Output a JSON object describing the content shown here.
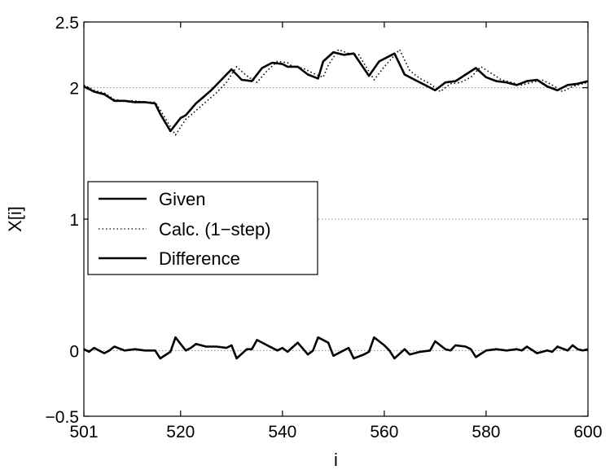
{
  "chart_data": {
    "type": "line",
    "xlabel": "i",
    "ylabel": "X[i]",
    "xlim": [
      501,
      600
    ],
    "ylim": [
      -0.5,
      2.5
    ],
    "x_ticks": [
      501,
      520,
      540,
      560,
      580,
      600
    ],
    "x_tick_labels": [
      "501",
      "520",
      "540",
      "560",
      "580",
      "600"
    ],
    "y_ticks": [
      -0.5,
      0,
      1,
      2,
      2.5
    ],
    "y_tick_labels": [
      "−0.5",
      "0",
      "1",
      "2",
      "2.5"
    ],
    "reference_lines": [
      0,
      1,
      2
    ],
    "legend": {
      "position": "middle-left",
      "entries": [
        {
          "label": "Given",
          "style": "solid"
        },
        {
          "label": "Calc. (1−step)",
          "style": "dotted"
        },
        {
          "label": "Difference",
          "style": "solid"
        }
      ]
    },
    "series": [
      {
        "name": "Given",
        "style": "solid",
        "color": "#000000",
        "points": [
          [
            501,
            2.01
          ],
          [
            503,
            1.97
          ],
          [
            505,
            1.95
          ],
          [
            507,
            1.9
          ],
          [
            509,
            1.9
          ],
          [
            511,
            1.89
          ],
          [
            513,
            1.89
          ],
          [
            515,
            1.88
          ],
          [
            516,
            1.8
          ],
          [
            518,
            1.67
          ],
          [
            520,
            1.77
          ],
          [
            521,
            1.79
          ],
          [
            523,
            1.88
          ],
          [
            526,
            1.98
          ],
          [
            528,
            2.06
          ],
          [
            530,
            2.14
          ],
          [
            532,
            2.06
          ],
          [
            534,
            2.05
          ],
          [
            536,
            2.15
          ],
          [
            538,
            2.19
          ],
          [
            540,
            2.18
          ],
          [
            541,
            2.16
          ],
          [
            543,
            2.16
          ],
          [
            545,
            2.1
          ],
          [
            547,
            2.07
          ],
          [
            548,
            2.2
          ],
          [
            550,
            2.27
          ],
          [
            552,
            2.25
          ],
          [
            554,
            2.26
          ],
          [
            557,
            2.09
          ],
          [
            559,
            2.2
          ],
          [
            562,
            2.26
          ],
          [
            564,
            2.1
          ],
          [
            566,
            2.06
          ],
          [
            568,
            2.02
          ],
          [
            570,
            1.98
          ],
          [
            572,
            2.04
          ],
          [
            574,
            2.05
          ],
          [
            576,
            2.1
          ],
          [
            578,
            2.15
          ],
          [
            580,
            2.08
          ],
          [
            582,
            2.05
          ],
          [
            584,
            2.04
          ],
          [
            586,
            2.02
          ],
          [
            588,
            2.05
          ],
          [
            590,
            2.06
          ],
          [
            592,
            2.01
          ],
          [
            594,
            1.98
          ],
          [
            596,
            2.02
          ],
          [
            598,
            2.03
          ],
          [
            600,
            2.05
          ]
        ]
      },
      {
        "name": "Calc. (1−step)",
        "style": "dotted",
        "color": "#000000",
        "points": [
          [
            501,
            2.02
          ],
          [
            503,
            1.98
          ],
          [
            505,
            1.96
          ],
          [
            507,
            1.91
          ],
          [
            509,
            1.9
          ],
          [
            511,
            1.9
          ],
          [
            513,
            1.89
          ],
          [
            515,
            1.89
          ],
          [
            516,
            1.83
          ],
          [
            519,
            1.64
          ],
          [
            521,
            1.76
          ],
          [
            522,
            1.79
          ],
          [
            524,
            1.86
          ],
          [
            527,
            1.96
          ],
          [
            529,
            2.04
          ],
          [
            531,
            2.16
          ],
          [
            533,
            2.09
          ],
          [
            535,
            2.04
          ],
          [
            537,
            2.13
          ],
          [
            539,
            2.2
          ],
          [
            541,
            2.19
          ],
          [
            542,
            2.16
          ],
          [
            544,
            2.15
          ],
          [
            546,
            2.11
          ],
          [
            548,
            2.08
          ],
          [
            549,
            2.17
          ],
          [
            551,
            2.29
          ],
          [
            553,
            2.26
          ],
          [
            555,
            2.25
          ],
          [
            558,
            2.06
          ],
          [
            560,
            2.16
          ],
          [
            563,
            2.29
          ],
          [
            565,
            2.13
          ],
          [
            567,
            2.07
          ],
          [
            569,
            2.03
          ],
          [
            571,
            1.97
          ],
          [
            573,
            2.03
          ],
          [
            575,
            2.04
          ],
          [
            577,
            2.08
          ],
          [
            579,
            2.16
          ],
          [
            581,
            2.11
          ],
          [
            583,
            2.06
          ],
          [
            585,
            2.04
          ],
          [
            587,
            2.02
          ],
          [
            589,
            2.04
          ],
          [
            591,
            2.06
          ],
          [
            593,
            2.02
          ],
          [
            595,
            1.97
          ],
          [
            597,
            2.01
          ],
          [
            599,
            2.03
          ],
          [
            600,
            2.04
          ]
        ]
      },
      {
        "name": "Difference",
        "style": "solid",
        "color": "#000000",
        "points": [
          [
            501,
            0.01
          ],
          [
            502,
            -0.01
          ],
          [
            503,
            0.02
          ],
          [
            505,
            -0.02
          ],
          [
            506,
            0.0
          ],
          [
            507,
            0.03
          ],
          [
            509,
            0.0
          ],
          [
            511,
            0.01
          ],
          [
            513,
            0.0
          ],
          [
            515,
            0.0
          ],
          [
            516,
            -0.06
          ],
          [
            518,
            -0.01
          ],
          [
            519,
            0.1
          ],
          [
            521,
            0.0
          ],
          [
            522,
            0.02
          ],
          [
            523,
            0.05
          ],
          [
            525,
            0.03
          ],
          [
            527,
            0.03
          ],
          [
            529,
            0.02
          ],
          [
            530,
            0.04
          ],
          [
            531,
            -0.06
          ],
          [
            533,
            0.01
          ],
          [
            534,
            0.01
          ],
          [
            535,
            0.08
          ],
          [
            537,
            0.04
          ],
          [
            539,
            0.0
          ],
          [
            540,
            0.02
          ],
          [
            541,
            -0.01
          ],
          [
            543,
            0.06
          ],
          [
            545,
            -0.03
          ],
          [
            546,
            0.0
          ],
          [
            547,
            0.1
          ],
          [
            549,
            0.06
          ],
          [
            550,
            -0.04
          ],
          [
            552,
            0.0
          ],
          [
            553,
            0.02
          ],
          [
            554,
            -0.06
          ],
          [
            556,
            -0.03
          ],
          [
            557,
            -0.01
          ],
          [
            558,
            0.1
          ],
          [
            560,
            0.04
          ],
          [
            561,
            0.0
          ],
          [
            562,
            -0.06
          ],
          [
            564,
            0.01
          ],
          [
            565,
            -0.03
          ],
          [
            567,
            -0.01
          ],
          [
            569,
            0.0
          ],
          [
            570,
            0.07
          ],
          [
            572,
            0.01
          ],
          [
            573,
            0.0
          ],
          [
            574,
            0.04
          ],
          [
            576,
            0.03
          ],
          [
            577,
            0.01
          ],
          [
            578,
            -0.05
          ],
          [
            580,
            0.0
          ],
          [
            582,
            0.01
          ],
          [
            584,
            0.0
          ],
          [
            586,
            0.01
          ],
          [
            587,
            0.0
          ],
          [
            588,
            0.03
          ],
          [
            590,
            -0.02
          ],
          [
            592,
            0.0
          ],
          [
            593,
            -0.01
          ],
          [
            594,
            0.03
          ],
          [
            596,
            0.0
          ],
          [
            597,
            0.04
          ],
          [
            598,
            0.01
          ],
          [
            599,
            0.0
          ],
          [
            600,
            0.01
          ]
        ]
      }
    ]
  }
}
